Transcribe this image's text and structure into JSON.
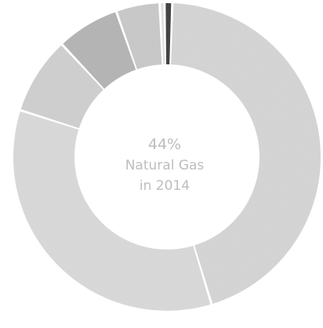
{
  "chart_data": {
    "type": "pie",
    "donut": true,
    "center_label": {
      "value": "44%",
      "line1": "Natural Gas",
      "line2": "in 2014"
    },
    "slices": [
      {
        "value": 44,
        "color": "#d6d6d6"
      },
      {
        "value": 34,
        "color": "#dadada"
      },
      {
        "value": 8,
        "color": "#d0d0d0"
      },
      {
        "value": 6.5,
        "color": "#b4b4b4"
      },
      {
        "value": 4.5,
        "color": "#c9c9c9"
      },
      {
        "value": 0.5,
        "color": "#e4e4e4"
      },
      {
        "value": 0.8,
        "color": "#222222"
      }
    ],
    "legend": "none",
    "grid": false
  }
}
